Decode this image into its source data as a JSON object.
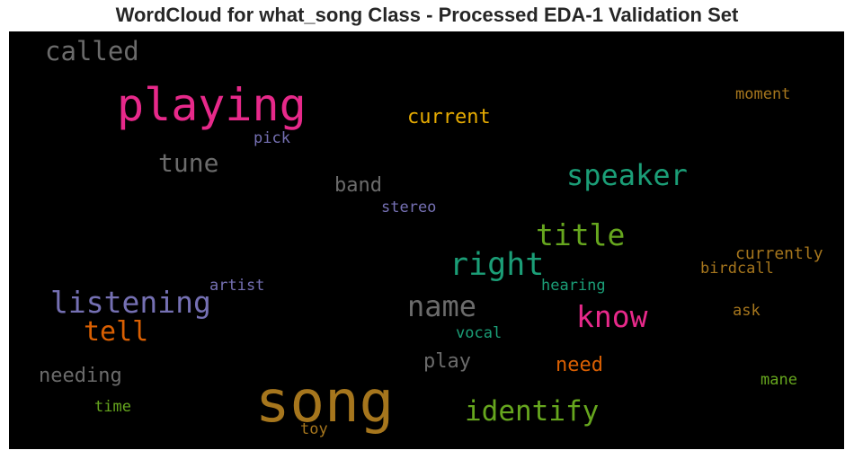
{
  "title": "WordCloud for what_song Class - Processed EDA-1 Validation Set",
  "colors": {
    "gray": "#6b6b6b",
    "pink": "#e7298a",
    "teal": "#1b9e77",
    "green": "#66a61e",
    "gold": "#a6761d",
    "amber": "#e6ab02",
    "orange": "#d95f02",
    "purple": "#7570b3"
  },
  "words": {
    "song": "song",
    "playing": "playing",
    "speaker": "speaker",
    "called": "called",
    "tune": "tune",
    "current": "current",
    "pick": "pick",
    "moment": "moment",
    "band": "band",
    "stereo": "stereo",
    "birdcall": "birdcall",
    "title": "title",
    "right": "right",
    "listening": "listening",
    "tell": "tell",
    "artist": "artist",
    "name": "name",
    "know": "know",
    "hearing": "hearing",
    "currently": "currently",
    "ask": "ask",
    "vocal": "vocal",
    "needing": "needing",
    "play": "play",
    "need": "need",
    "identify": "identify",
    "mane": "mane",
    "time": "time",
    "toy": "toy"
  }
}
